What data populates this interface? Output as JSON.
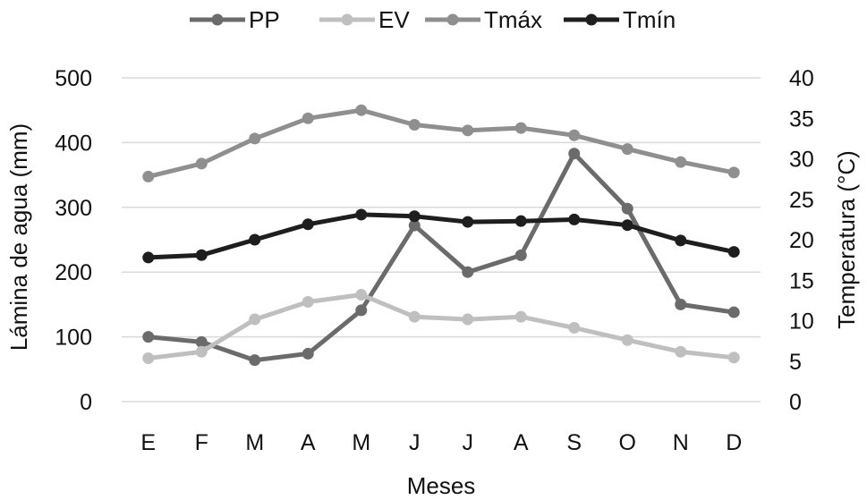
{
  "chart_data": {
    "type": "line",
    "title": "",
    "categories": [
      "E",
      "F",
      "M",
      "A",
      "M",
      "J",
      "J",
      "A",
      "S",
      "O",
      "N",
      "D"
    ],
    "xlabel": "Meses",
    "ylabel_left": "Lámina de agua (mm)",
    "ylabel_right": "Temperatura (°C)",
    "ylim_left": [
      0,
      500
    ],
    "ylim_right": [
      0,
      40
    ],
    "yticks_left": [
      "0",
      "100",
      "200",
      "300",
      "400",
      "500"
    ],
    "yticks_right": [
      "0",
      "5",
      "10",
      "15",
      "20",
      "25",
      "30",
      "35",
      "40"
    ],
    "grid": true,
    "legend_position": "top",
    "series": [
      {
        "name": "PP",
        "axis": "left",
        "color": "#6b6b6b",
        "values": [
          100,
          92,
          64,
          74,
          141,
          272,
          200,
          226,
          383,
          298,
          150,
          138
        ]
      },
      {
        "name": "EV",
        "axis": "left",
        "color": "#bfbfbf",
        "values": [
          67,
          77,
          127,
          154,
          165,
          131,
          127,
          131,
          114,
          95,
          77,
          68
        ]
      },
      {
        "name": "Tmáx",
        "axis": "right",
        "color": "#8f8f8f",
        "values": [
          27.8,
          29.4,
          32.5,
          35.0,
          36.0,
          34.2,
          33.5,
          33.8,
          32.9,
          31.2,
          29.6,
          28.3
        ]
      },
      {
        "name": "Tmín",
        "axis": "right",
        "color": "#1e1e1e",
        "values": [
          17.8,
          18.1,
          20.0,
          21.9,
          23.1,
          22.9,
          22.2,
          22.3,
          22.5,
          21.8,
          19.9,
          18.5
        ]
      }
    ]
  }
}
